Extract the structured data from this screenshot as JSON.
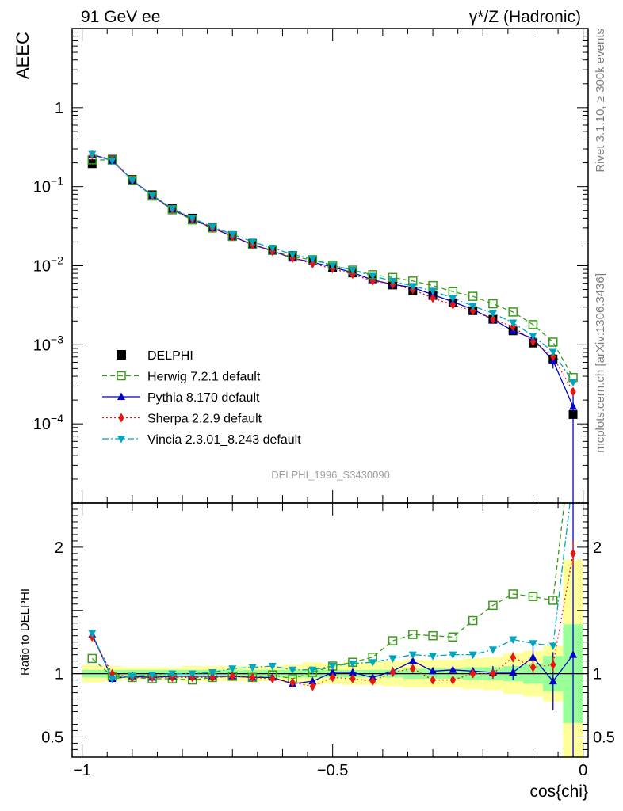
{
  "header": {
    "left": "91 GeV ee",
    "right": "γ*/Z (Hadronic)"
  },
  "side_text": {
    "rivet": "Rivet 3.1.10, ≥ 300k events",
    "mcplots": "mcplots.cern.ch [arXiv:1306.3436]"
  },
  "watermark": "DELPHI_1996_S3430090",
  "chart_data": [
    {
      "type": "line",
      "ylabel": "AEEC",
      "yscale": "log",
      "ylim": [
        1e-05,
        10
      ],
      "xlim": [
        -1.02,
        0.01
      ],
      "y_ticks": [
        {
          "value": 1,
          "label": "1"
        },
        {
          "value": 0.1,
          "label": "10",
          "exp": "−1"
        },
        {
          "value": 0.01,
          "label": "10",
          "exp": "−2"
        },
        {
          "value": 0.001,
          "label": "10",
          "exp": "−3"
        },
        {
          "value": 0.0001,
          "label": "10",
          "exp": "−4"
        }
      ],
      "x": [
        -0.98,
        -0.94,
        -0.9,
        -0.86,
        -0.82,
        -0.78,
        -0.74,
        -0.7,
        -0.66,
        -0.62,
        -0.58,
        -0.54,
        -0.5,
        -0.46,
        -0.42,
        -0.38,
        -0.34,
        -0.3,
        -0.26,
        -0.22,
        -0.18,
        -0.14,
        -0.1,
        -0.06,
        -0.02
      ],
      "series": [
        {
          "name": "DELPHI",
          "color": "#000000",
          "marker": "square",
          "values": [
            0.195,
            0.222,
            0.123,
            0.079,
            0.053,
            0.04,
            0.031,
            0.024,
            0.019,
            0.0158,
            0.0135,
            0.0118,
            0.0095,
            0.0081,
            0.0068,
            0.0057,
            0.0048,
            0.0042,
            0.0034,
            0.0027,
            0.0021,
            0.0015,
            0.00105,
            0.00066,
            0.000131
          ]
        },
        {
          "name": "Herwig 7.2.1 default",
          "color": "#3a9c1a",
          "marker": "open-square",
          "dash": "6,4",
          "values": [
            0.218,
            0.217,
            0.12,
            0.076,
            0.051,
            0.038,
            0.03,
            0.0235,
            0.0185,
            0.0156,
            0.0129,
            0.0119,
            0.0101,
            0.0088,
            0.0077,
            0.0071,
            0.0064,
            0.0056,
            0.0047,
            0.0041,
            0.0033,
            0.0026,
            0.0018,
            0.00108,
            0.000385
          ]
        },
        {
          "name": "Pythia 8.170 default",
          "color": "#0000cc",
          "marker": "triangle-up",
          "dash": "",
          "values": [
            0.255,
            0.213,
            0.121,
            0.077,
            0.052,
            0.039,
            0.03,
            0.0236,
            0.0185,
            0.0154,
            0.0124,
            0.0111,
            0.0096,
            0.0082,
            0.0066,
            0.0058,
            0.0053,
            0.0043,
            0.0035,
            0.0028,
            0.0021,
            0.0015,
            0.0012,
            0.00063,
            0.000165
          ]
        },
        {
          "name": "Sherpa 2.2.9 default",
          "color": "#e8160f",
          "marker": "diamond",
          "dash": "2,3",
          "values": [
            0.252,
            0.222,
            0.12,
            0.077,
            0.052,
            0.039,
            0.03,
            0.0235,
            0.0184,
            0.0152,
            0.0125,
            0.0106,
            0.0092,
            0.0078,
            0.0064,
            0.0058,
            0.005,
            0.0039,
            0.0032,
            0.0027,
            0.0021,
            0.0017,
            0.0011,
            0.00071,
            0.000255
          ]
        },
        {
          "name": "Vincia 2.3.01_8.243 default",
          "color": "#00a5c0",
          "marker": "triangle-down",
          "dash": "8,3,2,3",
          "values": [
            0.258,
            0.214,
            0.12,
            0.078,
            0.053,
            0.04,
            0.031,
            0.025,
            0.0201,
            0.0168,
            0.0139,
            0.0122,
            0.0101,
            0.0088,
            0.0074,
            0.0064,
            0.0055,
            0.0048,
            0.0039,
            0.0031,
            0.0025,
            0.0019,
            0.0013,
            0.00081,
            0.000335
          ]
        }
      ]
    },
    {
      "type": "line",
      "xlabel": "cos{chi}",
      "ylabel": "Ratio to DELPHI",
      "ylim": [
        0.34,
        2.35
      ],
      "xlim": [
        -1.02,
        0.01
      ],
      "x_ticks": [
        {
          "value": -1,
          "label": "−1"
        },
        {
          "value": -0.5,
          "label": "−0.5"
        },
        {
          "value": 0,
          "label": "0"
        }
      ],
      "y_ticks": [
        {
          "value": 0.5,
          "label": "0.5"
        },
        {
          "value": 1,
          "label": "1"
        },
        {
          "value": 2,
          "label": "2"
        }
      ],
      "stat_band": [
        0.03,
        0.03,
        0.03,
        0.03,
        0.03,
        0.03,
        0.03,
        0.03,
        0.03,
        0.03,
        0.03,
        0.03,
        0.03,
        0.03,
        0.03,
        0.03,
        0.04,
        0.04,
        0.04,
        0.05,
        0.05,
        0.06,
        0.08,
        0.14,
        0.39
      ],
      "total_band": [
        0.07,
        0.06,
        0.05,
        0.05,
        0.05,
        0.06,
        0.06,
        0.06,
        0.06,
        0.06,
        0.07,
        0.09,
        0.08,
        0.09,
        0.09,
        0.1,
        0.11,
        0.11,
        0.11,
        0.12,
        0.13,
        0.16,
        0.18,
        0.22,
        0.9
      ],
      "x": [
        -0.98,
        -0.94,
        -0.9,
        -0.86,
        -0.82,
        -0.78,
        -0.74,
        -0.7,
        -0.66,
        -0.62,
        -0.58,
        -0.54,
        -0.5,
        -0.46,
        -0.42,
        -0.38,
        -0.34,
        -0.3,
        -0.26,
        -0.22,
        -0.18,
        -0.14,
        -0.1,
        -0.06,
        -0.02
      ],
      "series": [
        {
          "name": "Herwig 7.2.1 default",
          "color": "#3a9c1a",
          "marker": "open-square",
          "dash": "6,4",
          "values": [
            1.12,
            0.98,
            0.97,
            0.96,
            0.96,
            0.95,
            0.97,
            0.98,
            0.97,
            0.99,
            0.96,
            1.01,
            1.06,
            1.09,
            1.13,
            1.26,
            1.31,
            1.3,
            1.29,
            1.42,
            1.54,
            1.63,
            1.61,
            1.58,
            2.95
          ]
        },
        {
          "name": "Pythia 8.170 default",
          "color": "#0000cc",
          "marker": "triangle-up",
          "dash": "",
          "values": [
            1.31,
            0.96,
            0.98,
            0.97,
            0.98,
            0.98,
            0.98,
            0.98,
            0.97,
            0.97,
            0.92,
            0.94,
            1.01,
            1.01,
            0.97,
            1.02,
            1.1,
            1.02,
            1.03,
            1.02,
            1.01,
            1.01,
            1.13,
            0.94,
            1.15
          ],
          "err": [
            0,
            0,
            0,
            0,
            0,
            0,
            0,
            0,
            0,
            0,
            0,
            0,
            0,
            0,
            0,
            0,
            0,
            0,
            0,
            0,
            0.05,
            0.06,
            0.1,
            0.23,
            1.2
          ]
        },
        {
          "name": "Sherpa 2.2.9 default",
          "color": "#e8160f",
          "marker": "diamond",
          "dash": "2,3",
          "values": [
            1.29,
            1.0,
            0.97,
            0.97,
            0.97,
            0.97,
            0.97,
            0.98,
            0.97,
            0.96,
            0.93,
            0.9,
            0.97,
            0.96,
            0.94,
            1.01,
            1.04,
            0.95,
            0.95,
            1.0,
            1.0,
            1.13,
            1.05,
            1.07,
            1.95
          ],
          "err": [
            0,
            0,
            0,
            0,
            0,
            0,
            0,
            0,
            0,
            0,
            0,
            0,
            0,
            0,
            0,
            0,
            0,
            0,
            0,
            0,
            0.03,
            0.04,
            0.05,
            0.06,
            0.1
          ]
        },
        {
          "name": "Vincia 2.3.01_8.243 default",
          "color": "#00a5c0",
          "marker": "triangle-down",
          "dash": "8,3,2,3",
          "values": [
            1.32,
            0.96,
            0.98,
            0.99,
            1.0,
            1.0,
            1.01,
            1.04,
            1.05,
            1.06,
            1.03,
            1.03,
            1.06,
            1.08,
            1.09,
            1.12,
            1.15,
            1.14,
            1.15,
            1.15,
            1.19,
            1.27,
            1.24,
            1.22,
            2.56
          ]
        }
      ]
    }
  ]
}
